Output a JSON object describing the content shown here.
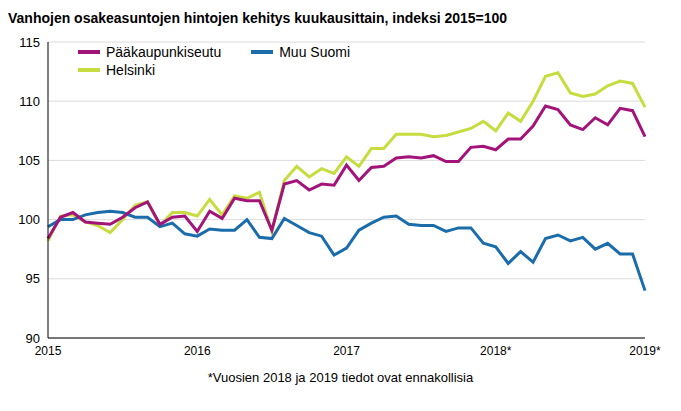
{
  "chart_data": {
    "type": "line",
    "title": "Vanhojen osakeasuntojen hintojen kehitys kuukausittain, indeksi 2015=100",
    "annotation": "*Vuosien 2018 ja 2019 tiedot ovat ennakollisia",
    "categories": [
      "2015",
      null,
      null,
      null,
      null,
      null,
      null,
      null,
      null,
      null,
      null,
      null,
      "2016",
      null,
      null,
      null,
      null,
      null,
      null,
      null,
      null,
      null,
      null,
      null,
      "2017",
      null,
      null,
      null,
      null,
      null,
      null,
      null,
      null,
      null,
      null,
      null,
      "2018*",
      null,
      null,
      null,
      null,
      null,
      null,
      null,
      null,
      null,
      null,
      null,
      "2019*"
    ],
    "series": [
      {
        "name": "Pääkaupunkiseutu",
        "color": "#a3147b",
        "values": [
          98.4,
          100.2,
          100.6,
          99.8,
          99.7,
          99.6,
          100.2,
          101.0,
          101.5,
          99.6,
          100.2,
          100.3,
          99.0,
          100.7,
          100.1,
          101.8,
          101.6,
          101.6,
          99.1,
          103.0,
          103.3,
          102.5,
          103.0,
          102.9,
          104.6,
          103.3,
          104.4,
          104.5,
          105.2,
          105.3,
          105.2,
          105.4,
          104.9,
          104.9,
          106.1,
          106.2,
          105.9,
          106.8,
          106.8,
          107.9,
          109.6,
          109.3,
          108.0,
          107.6,
          108.6,
          108.0,
          109.4,
          109.2,
          107.0
        ]
      },
      {
        "name": "Muu Suomi",
        "color": "#1a6daa",
        "values": [
          99.4,
          100.0,
          100.0,
          100.4,
          100.6,
          100.7,
          100.6,
          100.2,
          100.2,
          99.4,
          99.7,
          98.8,
          98.6,
          99.2,
          99.1,
          99.1,
          100.0,
          98.5,
          98.4,
          100.1,
          99.5,
          98.9,
          98.6,
          97.0,
          97.6,
          99.1,
          99.7,
          100.2,
          100.3,
          99.6,
          99.5,
          99.5,
          99.0,
          99.3,
          99.3,
          98.0,
          97.7,
          96.3,
          97.3,
          96.4,
          98.4,
          98.7,
          98.2,
          98.5,
          97.5,
          98.0,
          97.1,
          97.1,
          94.0
        ]
      },
      {
        "name": "Helsinki",
        "color": "#c7dc3f",
        "values": [
          98.2,
          100.3,
          100.4,
          99.8,
          99.5,
          98.9,
          100.0,
          101.2,
          101.5,
          99.5,
          100.6,
          100.6,
          100.3,
          101.7,
          100.4,
          102.0,
          101.8,
          102.3,
          99.0,
          103.3,
          104.5,
          103.6,
          104.3,
          103.9,
          105.3,
          104.5,
          106.0,
          106.0,
          107.2,
          107.2,
          107.2,
          107.0,
          107.1,
          107.4,
          107.7,
          108.3,
          107.5,
          109.0,
          108.3,
          110.0,
          112.1,
          112.4,
          110.7,
          110.4,
          110.6,
          111.3,
          111.7,
          111.5,
          109.5
        ]
      }
    ],
    "ylim": [
      90,
      115
    ],
    "yticks": [
      90,
      95,
      100,
      105,
      110,
      115
    ],
    "grid": true,
    "legend": "top-left"
  }
}
